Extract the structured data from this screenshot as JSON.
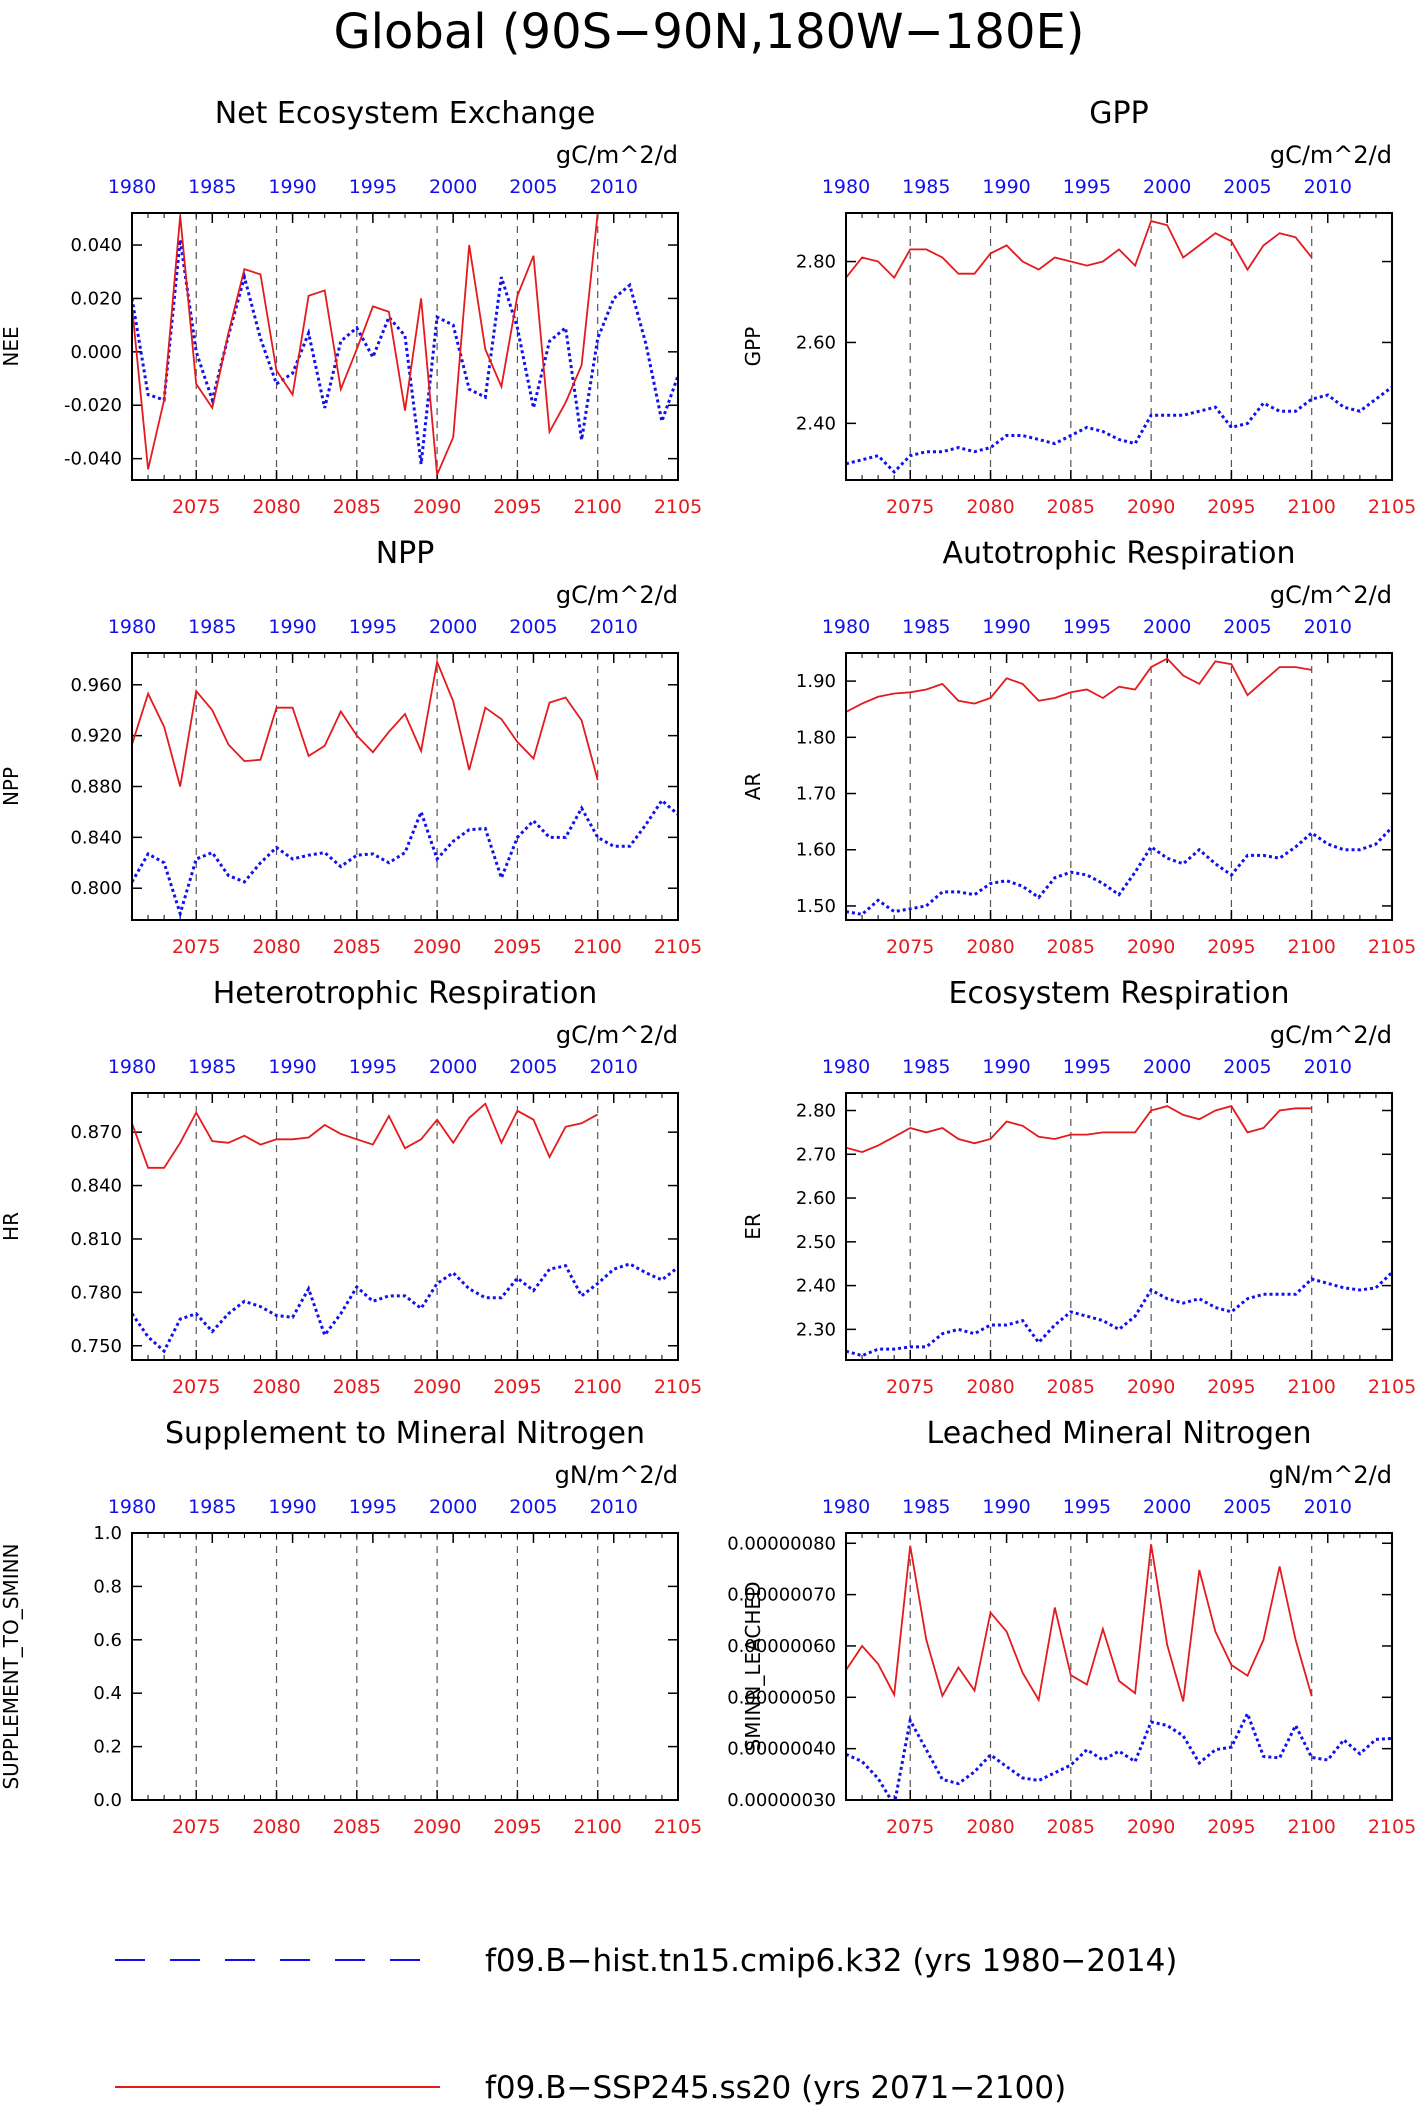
{
  "figure_title": "Global (90S−90N,180W−180E)",
  "top_axis_ticks": [
    "1980",
    "1985",
    "1990",
    "1995",
    "2000",
    "2005",
    "2010"
  ],
  "bottom_axis_ticks": [
    "2075",
    "2080",
    "2085",
    "2090",
    "2095",
    "2100",
    "2105"
  ],
  "colors": {
    "hist": "#1111ee",
    "ssp": "#e41a1c",
    "axis": "#000000",
    "grid": "#555555"
  },
  "legend": [
    {
      "label": "f09.B−hist.tn15.cmip6.k32 (yrs 1980−2014)",
      "style": "dashed",
      "color": "#1111ee"
    },
    {
      "label": "f09.B−SSP245.ss20 (yrs 2071−2100)",
      "style": "solid",
      "color": "#e41a1c"
    }
  ],
  "chart_data": [
    {
      "type": "line",
      "title": "Net Ecosystem Exchange",
      "units": "gC/m^2/d",
      "ylabel": "NEE",
      "x_hist_range": [
        1980,
        2014
      ],
      "x_ssp_range": [
        2071,
        2105
      ],
      "ylim": [
        -0.048,
        0.052
      ],
      "yticks": [
        "-0.040",
        "-0.020",
        "0.000",
        "0.020",
        "0.040"
      ],
      "ytick_values": [
        -0.04,
        -0.02,
        0,
        0.02,
        0.04
      ],
      "series": [
        {
          "values": [
            0.02,
            -0.016,
            -0.018,
            0.042,
            0.0,
            -0.018,
            0.006,
            0.028,
            0.005,
            -0.012,
            -0.008,
            0.007,
            -0.021,
            0.004,
            0.009,
            -0.002,
            0.013,
            0.006,
            -0.042,
            0.013,
            0.01,
            -0.014,
            -0.017,
            0.028,
            0.009,
            -0.021,
            0.004,
            0.009,
            -0.033,
            0.005,
            0.02,
            0.025,
            0.003,
            -0.026,
            -0.009
          ]
        },
        {
          "values": [
            0.017,
            -0.044,
            -0.018,
            0.051,
            -0.012,
            -0.021,
            0.007,
            0.031,
            0.029,
            -0.007,
            -0.016,
            0.021,
            0.023,
            -0.014,
            0.001,
            0.017,
            0.015,
            -0.022,
            0.02,
            -0.046,
            -0.032,
            0.04,
            0.001,
            -0.013,
            0.021,
            0.036,
            -0.03,
            -0.019,
            -0.005,
            0.052
          ]
        }
      ]
    },
    {
      "type": "line",
      "title": "GPP",
      "units": "gC/m^2/d",
      "ylabel": "GPP",
      "x_hist_range": [
        1980,
        2014
      ],
      "x_ssp_range": [
        2071,
        2105
      ],
      "ylim": [
        2.26,
        2.92
      ],
      "yticks": [
        "2.40",
        "2.60",
        "2.80"
      ],
      "ytick_values": [
        2.4,
        2.6,
        2.8
      ],
      "series": [
        {
          "values": [
            2.3,
            2.31,
            2.32,
            2.28,
            2.32,
            2.33,
            2.33,
            2.34,
            2.33,
            2.34,
            2.37,
            2.37,
            2.36,
            2.35,
            2.37,
            2.39,
            2.38,
            2.36,
            2.35,
            2.42,
            2.42,
            2.42,
            2.43,
            2.44,
            2.39,
            2.4,
            2.45,
            2.43,
            2.43,
            2.46,
            2.47,
            2.44,
            2.43,
            2.46,
            2.49
          ]
        },
        {
          "values": [
            2.76,
            2.81,
            2.8,
            2.76,
            2.83,
            2.83,
            2.81,
            2.77,
            2.77,
            2.82,
            2.84,
            2.8,
            2.78,
            2.81,
            2.8,
            2.79,
            2.8,
            2.83,
            2.79,
            2.9,
            2.89,
            2.81,
            2.84,
            2.87,
            2.85,
            2.78,
            2.84,
            2.87,
            2.86,
            2.81
          ]
        }
      ]
    },
    {
      "type": "line",
      "title": "NPP",
      "units": "gC/m^2/d",
      "ylabel": "NPP",
      "x_hist_range": [
        1980,
        2014
      ],
      "x_ssp_range": [
        2071,
        2105
      ],
      "ylim": [
        0.775,
        0.985
      ],
      "yticks": [
        "0.800",
        "0.840",
        "0.880",
        "0.920",
        "0.960"
      ],
      "ytick_values": [
        0.8,
        0.84,
        0.88,
        0.92,
        0.96
      ],
      "series": [
        {
          "values": [
            0.805,
            0.827,
            0.82,
            0.78,
            0.823,
            0.828,
            0.81,
            0.805,
            0.82,
            0.832,
            0.823,
            0.826,
            0.828,
            0.817,
            0.826,
            0.827,
            0.82,
            0.828,
            0.86,
            0.823,
            0.837,
            0.846,
            0.847,
            0.808,
            0.84,
            0.853,
            0.84,
            0.84,
            0.863,
            0.84,
            0.833,
            0.833,
            0.85,
            0.869,
            0.858
          ]
        },
        {
          "values": [
            0.913,
            0.953,
            0.927,
            0.88,
            0.955,
            0.94,
            0.913,
            0.9,
            0.901,
            0.942,
            0.942,
            0.904,
            0.912,
            0.939,
            0.92,
            0.907,
            0.923,
            0.937,
            0.908,
            0.978,
            0.947,
            0.893,
            0.942,
            0.933,
            0.915,
            0.902,
            0.946,
            0.95,
            0.932,
            0.885
          ]
        }
      ]
    },
    {
      "type": "line",
      "title": "Autotrophic Respiration",
      "units": "gC/m^2/d",
      "ylabel": "AR",
      "x_hist_range": [
        1980,
        2014
      ],
      "x_ssp_range": [
        2071,
        2105
      ],
      "ylim": [
        1.475,
        1.95
      ],
      "yticks": [
        "1.50",
        "1.60",
        "1.70",
        "1.80",
        "1.90"
      ],
      "ytick_values": [
        1.5,
        1.6,
        1.7,
        1.8,
        1.9
      ],
      "series": [
        {
          "values": [
            1.49,
            1.485,
            1.51,
            1.49,
            1.495,
            1.5,
            1.525,
            1.525,
            1.52,
            1.54,
            1.545,
            1.535,
            1.515,
            1.55,
            1.56,
            1.555,
            1.54,
            1.52,
            1.56,
            1.605,
            1.585,
            1.575,
            1.6,
            1.575,
            1.555,
            1.59,
            1.59,
            1.585,
            1.605,
            1.63,
            1.61,
            1.6,
            1.6,
            1.61,
            1.64
          ]
        },
        {
          "values": [
            1.845,
            1.86,
            1.872,
            1.878,
            1.88,
            1.885,
            1.895,
            1.865,
            1.86,
            1.87,
            1.905,
            1.895,
            1.865,
            1.87,
            1.88,
            1.885,
            1.87,
            1.89,
            1.885,
            1.925,
            1.94,
            1.91,
            1.895,
            1.935,
            1.93,
            1.875,
            1.9,
            1.925,
            1.925,
            1.92
          ]
        }
      ]
    },
    {
      "type": "line",
      "title": "Heterotrophic Respiration",
      "units": "gC/m^2/d",
      "ylabel": "HR",
      "x_hist_range": [
        1980,
        2014
      ],
      "x_ssp_range": [
        2071,
        2105
      ],
      "ylim": [
        0.742,
        0.892
      ],
      "yticks": [
        "0.750",
        "0.780",
        "0.810",
        "0.840",
        "0.870"
      ],
      "ytick_values": [
        0.75,
        0.78,
        0.81,
        0.84,
        0.87
      ],
      "series": [
        {
          "values": [
            0.768,
            0.755,
            0.747,
            0.765,
            0.768,
            0.758,
            0.768,
            0.775,
            0.772,
            0.767,
            0.766,
            0.782,
            0.756,
            0.768,
            0.783,
            0.775,
            0.778,
            0.778,
            0.771,
            0.785,
            0.791,
            0.782,
            0.777,
            0.777,
            0.788,
            0.781,
            0.793,
            0.795,
            0.778,
            0.785,
            0.793,
            0.796,
            0.791,
            0.787,
            0.794
          ]
        },
        {
          "values": [
            0.875,
            0.85,
            0.85,
            0.864,
            0.881,
            0.865,
            0.864,
            0.868,
            0.863,
            0.866,
            0.866,
            0.867,
            0.874,
            0.869,
            0.866,
            0.863,
            0.879,
            0.861,
            0.866,
            0.877,
            0.864,
            0.878,
            0.886,
            0.864,
            0.882,
            0.877,
            0.856,
            0.873,
            0.875,
            0.88
          ]
        }
      ]
    },
    {
      "type": "line",
      "title": "Ecosystem Respiration",
      "units": "gC/m^2/d",
      "ylabel": "ER",
      "x_hist_range": [
        1980,
        2014
      ],
      "x_ssp_range": [
        2071,
        2105
      ],
      "ylim": [
        2.23,
        2.84
      ],
      "yticks": [
        "2.30",
        "2.40",
        "2.50",
        "2.60",
        "2.70",
        "2.80"
      ],
      "ytick_values": [
        2.3,
        2.4,
        2.5,
        2.6,
        2.7,
        2.8
      ],
      "series": [
        {
          "values": [
            2.25,
            2.24,
            2.255,
            2.255,
            2.26,
            2.26,
            2.29,
            2.3,
            2.29,
            2.31,
            2.31,
            2.32,
            2.27,
            2.31,
            2.34,
            2.33,
            2.32,
            2.3,
            2.33,
            2.39,
            2.37,
            2.36,
            2.37,
            2.35,
            2.34,
            2.37,
            2.38,
            2.38,
            2.38,
            2.415,
            2.405,
            2.395,
            2.39,
            2.395,
            2.43
          ]
        },
        {
          "values": [
            2.715,
            2.705,
            2.72,
            2.74,
            2.76,
            2.75,
            2.76,
            2.735,
            2.725,
            2.735,
            2.775,
            2.765,
            2.74,
            2.735,
            2.745,
            2.745,
            2.75,
            2.75,
            2.75,
            2.8,
            2.81,
            2.79,
            2.78,
            2.8,
            2.81,
            2.75,
            2.76,
            2.8,
            2.805,
            2.805
          ]
        }
      ]
    },
    {
      "type": "line",
      "title": "Supplement to Mineral Nitrogen",
      "units": "gN/m^2/d",
      "ylabel": "SUPPLEMENT_TO_SMINN",
      "x_hist_range": [
        1980,
        2014
      ],
      "x_ssp_range": [
        2071,
        2105
      ],
      "ylim": [
        0.0,
        1.0
      ],
      "yticks": [
        "0.0",
        "0.2",
        "0.4",
        "0.6",
        "0.8",
        "1.0"
      ],
      "ytick_values": [
        0,
        0.2,
        0.4,
        0.6,
        0.8,
        1.0
      ],
      "series": []
    },
    {
      "type": "line",
      "title": "Leached Mineral Nitrogen",
      "units": "gN/m^2/d",
      "ylabel": "SMINN_LEACHED",
      "x_hist_range": [
        1980,
        2014
      ],
      "x_ssp_range": [
        2071,
        2105
      ],
      "ylim": [
        3e-07,
        8.2e-07
      ],
      "yticks": [
        "0.00000030",
        "0.00000040",
        "0.00000050",
        "0.00000060",
        "0.00000070",
        "0.00000080"
      ],
      "ytick_values": [
        3e-07,
        4e-07,
        5e-07,
        6e-07,
        7e-07,
        8e-07
      ],
      "series": [
        {
          "values": [
            3.89e-07,
            3.75e-07,
            3.42e-07,
            2.9e-07,
            4.55e-07,
            3.98e-07,
            3.4e-07,
            3.32e-07,
            3.55e-07,
            3.88e-07,
            3.65e-07,
            3.43e-07,
            3.38e-07,
            3.53e-07,
            3.68e-07,
            3.98e-07,
            3.78e-07,
            3.95e-07,
            3.75e-07,
            4.52e-07,
            4.45e-07,
            4.25e-07,
            3.72e-07,
            3.98e-07,
            4.03e-07,
            4.68e-07,
            3.85e-07,
            3.82e-07,
            4.45e-07,
            3.83e-07,
            3.78e-07,
            4.17e-07,
            3.9e-07,
            4.18e-07,
            4.2e-07
          ]
        },
        {
          "values": [
            5.53e-07,
            6e-07,
            5.65e-07,
            5.05e-07,
            7.95e-07,
            6.12e-07,
            5.03e-07,
            5.58e-07,
            5.13e-07,
            6.65e-07,
            6.28e-07,
            5.48e-07,
            4.95e-07,
            6.75e-07,
            5.43e-07,
            5.25e-07,
            6.33e-07,
            5.32e-07,
            5.08e-07,
            7.98e-07,
            6.02e-07,
            4.92e-07,
            7.48e-07,
            6.28e-07,
            5.63e-07,
            5.42e-07,
            6.12e-07,
            7.55e-07,
            6.12e-07,
            5.02e-07
          ]
        }
      ]
    }
  ]
}
